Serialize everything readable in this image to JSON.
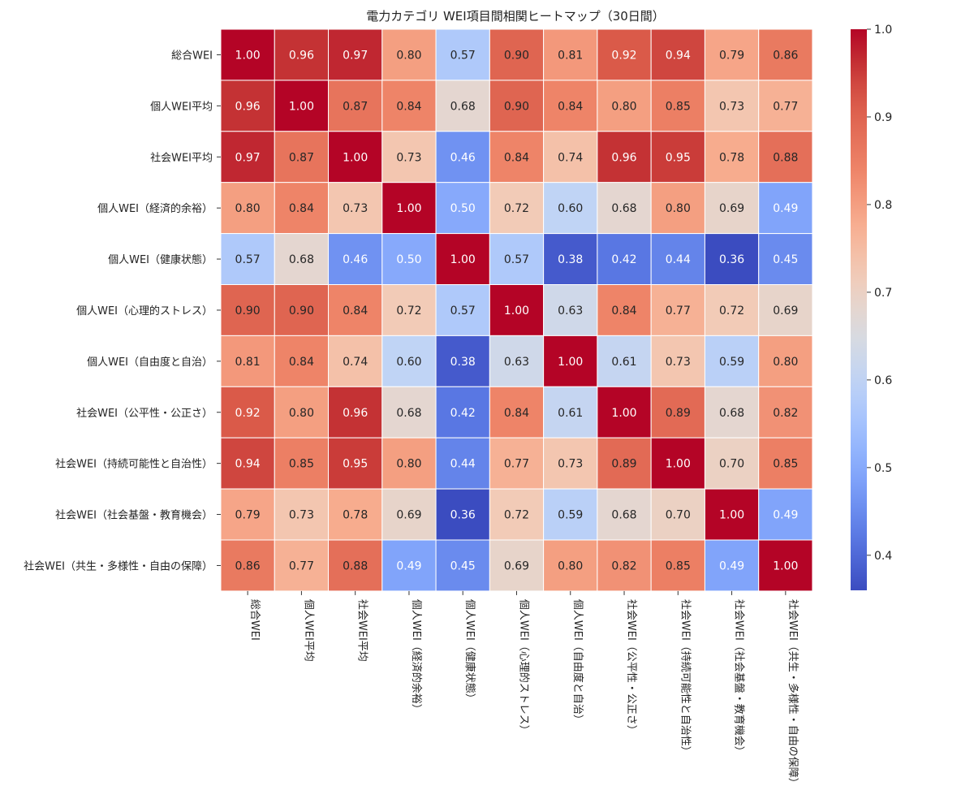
{
  "chart_data": {
    "type": "heatmap",
    "title": "電力カテゴリ WEI項目間相関ヒートマップ（30日間）",
    "xlabel": "",
    "ylabel": "",
    "labels": [
      "総合WEI",
      "個人WEI平均",
      "社会WEI平均",
      "個人WEI（経済的余裕）",
      "個人WEI（健康状態）",
      "個人WEI（心理的ストレス）",
      "個人WEI（自由度と自治）",
      "社会WEI（公平性・公正さ）",
      "社会WEI（持続可能性と自治性）",
      "社会WEI（社会基盤・教育機会）",
      "社会WEI（共生・多様性・自由の保障）"
    ],
    "matrix": [
      [
        1.0,
        0.96,
        0.97,
        0.8,
        0.57,
        0.9,
        0.81,
        0.92,
        0.94,
        0.79,
        0.86
      ],
      [
        0.96,
        1.0,
        0.87,
        0.84,
        0.68,
        0.9,
        0.84,
        0.8,
        0.85,
        0.73,
        0.77
      ],
      [
        0.97,
        0.87,
        1.0,
        0.73,
        0.46,
        0.84,
        0.74,
        0.96,
        0.95,
        0.78,
        0.88
      ],
      [
        0.8,
        0.84,
        0.73,
        1.0,
        0.5,
        0.72,
        0.6,
        0.68,
        0.8,
        0.69,
        0.49
      ],
      [
        0.57,
        0.68,
        0.46,
        0.5,
        1.0,
        0.57,
        0.38,
        0.42,
        0.44,
        0.36,
        0.45
      ],
      [
        0.9,
        0.9,
        0.84,
        0.72,
        0.57,
        1.0,
        0.63,
        0.84,
        0.77,
        0.72,
        0.69
      ],
      [
        0.81,
        0.84,
        0.74,
        0.6,
        0.38,
        0.63,
        1.0,
        0.61,
        0.73,
        0.59,
        0.8
      ],
      [
        0.92,
        0.8,
        0.96,
        0.68,
        0.42,
        0.84,
        0.61,
        1.0,
        0.89,
        0.68,
        0.82
      ],
      [
        0.94,
        0.85,
        0.95,
        0.8,
        0.44,
        0.77,
        0.73,
        0.89,
        1.0,
        0.7,
        0.85
      ],
      [
        0.79,
        0.73,
        0.78,
        0.69,
        0.36,
        0.72,
        0.59,
        0.68,
        0.7,
        1.0,
        0.49
      ],
      [
        0.86,
        0.77,
        0.88,
        0.49,
        0.45,
        0.69,
        0.8,
        0.82,
        0.85,
        0.49,
        1.0
      ]
    ],
    "colormap": "coolwarm",
    "vmin": 0.36,
    "vmax": 1.0,
    "colorbar_ticks": [
      "0.4",
      "0.5",
      "0.6",
      "0.7",
      "0.8",
      "0.9",
      "1.0"
    ],
    "annotations": true,
    "grid": false,
    "legend": "colorbar-right"
  }
}
